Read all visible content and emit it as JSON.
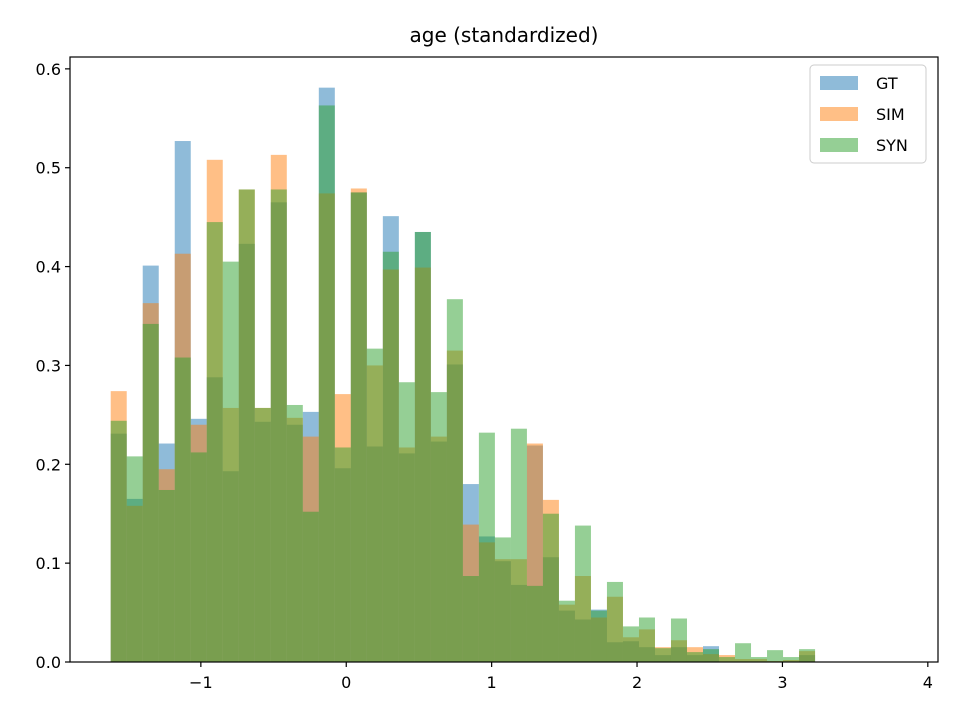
{
  "chart_data": {
    "type": "bar",
    "subtype": "overlapping-histogram",
    "title": "age (standardized)",
    "xlabel": "",
    "ylabel": "",
    "xlim": [
      -1.9,
      4.07
    ],
    "ylim": [
      0,
      0.612
    ],
    "x_ticks": [
      -1,
      0,
      1,
      2,
      3,
      4
    ],
    "x_tick_labels": [
      "−1",
      "0",
      "1",
      "2",
      "3",
      "4"
    ],
    "y_ticks": [
      0.0,
      0.1,
      0.2,
      0.3,
      0.4,
      0.5,
      0.6
    ],
    "y_tick_labels": [
      "0.0",
      "0.1",
      "0.2",
      "0.3",
      "0.4",
      "0.5",
      "0.6"
    ],
    "bin_start": -1.62,
    "bin_width": 0.1101,
    "grid": false,
    "legend_position": "top-right",
    "series": [
      {
        "name": "GT",
        "color": "#1f77b4",
        "values": [
          0.231,
          0.165,
          0.401,
          0.221,
          0.527,
          0.246,
          0.288,
          0.193,
          0.423,
          0.243,
          0.465,
          0.24,
          0.253,
          0.581,
          0.196,
          0.475,
          0.218,
          0.451,
          0.211,
          0.435,
          0.223,
          0.301,
          0.18,
          0.127,
          0.102,
          0.078,
          0.219,
          0.106,
          0.052,
          0.043,
          0.053,
          0.02,
          0.021,
          0.015,
          0.007,
          0.015,
          0.007,
          0.016,
          0.0,
          0.0,
          0.0,
          0.0,
          0.0,
          0.007
        ]
      },
      {
        "name": "SIM",
        "color": "#ff7f0e",
        "values": [
          0.274,
          0.158,
          0.363,
          0.195,
          0.413,
          0.24,
          0.508,
          0.257,
          0.478,
          0.257,
          0.513,
          0.247,
          0.228,
          0.474,
          0.271,
          0.479,
          0.3,
          0.397,
          0.217,
          0.399,
          0.228,
          0.315,
          0.139,
          0.121,
          0.104,
          0.104,
          0.221,
          0.164,
          0.058,
          0.087,
          0.045,
          0.066,
          0.025,
          0.033,
          0.015,
          0.022,
          0.015,
          0.008,
          0.007,
          0.003,
          0.003,
          0.001,
          0.002,
          0.011
        ]
      },
      {
        "name": "SYN",
        "color": "#2ca02c",
        "values": [
          0.244,
          0.208,
          0.342,
          0.174,
          0.308,
          0.212,
          0.445,
          0.405,
          0.478,
          0.257,
          0.478,
          0.26,
          0.152,
          0.563,
          0.217,
          0.475,
          0.317,
          0.415,
          0.283,
          0.435,
          0.273,
          0.367,
          0.087,
          0.232,
          0.126,
          0.236,
          0.077,
          0.15,
          0.062,
          0.138,
          0.052,
          0.081,
          0.036,
          0.045,
          0.014,
          0.044,
          0.01,
          0.013,
          0.005,
          0.019,
          0.005,
          0.012,
          0.005,
          0.013
        ]
      }
    ]
  }
}
